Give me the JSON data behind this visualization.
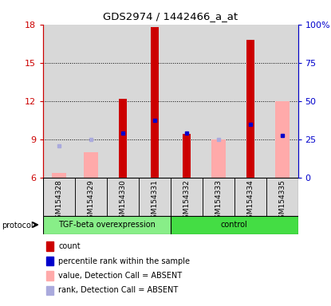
{
  "title": "GDS2974 / 1442466_a_at",
  "samples": [
    "GSM154328",
    "GSM154329",
    "GSM154330",
    "GSM154331",
    "GSM154332",
    "GSM154333",
    "GSM154334",
    "GSM154335"
  ],
  "ylim": [
    6,
    18
  ],
  "yticks": [
    6,
    9,
    12,
    15,
    18
  ],
  "ytick_labels_left": [
    "6",
    "9",
    "12",
    "15",
    "18"
  ],
  "ytick_labels_right": [
    "0",
    "25",
    "50",
    "75",
    "100%"
  ],
  "right_ylim": [
    0,
    100
  ],
  "right_yticks": [
    0,
    25,
    50,
    75,
    100
  ],
  "red_bars": {
    "GSM154328": null,
    "GSM154329": null,
    "GSM154330": 12.2,
    "GSM154331": 17.8,
    "GSM154332": 9.4,
    "GSM154333": null,
    "GSM154334": 16.8,
    "GSM154335": null
  },
  "pink_bars": {
    "GSM154328": 6.35,
    "GSM154329": 8.0,
    "GSM154330": null,
    "GSM154331": null,
    "GSM154332": null,
    "GSM154333": 9.0,
    "GSM154334": null,
    "GSM154335": 12.0
  },
  "blue_dots": {
    "GSM154328": null,
    "GSM154329": null,
    "GSM154330": 9.5,
    "GSM154331": 10.5,
    "GSM154332": 9.5,
    "GSM154333": null,
    "GSM154334": 10.2,
    "GSM154335": 9.3
  },
  "lavender_dots": {
    "GSM154328": 8.5,
    "GSM154329": 9.0,
    "GSM154330": null,
    "GSM154331": null,
    "GSM154332": null,
    "GSM154333": 9.0,
    "GSM154334": null,
    "GSM154335": null
  },
  "red_bar_width": 0.25,
  "pink_bar_width": 0.45,
  "red_color": "#cc0000",
  "pink_color": "#ffaaaa",
  "blue_color": "#0000cc",
  "lavender_color": "#aaaadd",
  "group1_color": "#88ee88",
  "group2_color": "#44dd44",
  "bg_color": "#d8d8d8",
  "plot_bg": "#ffffff",
  "base": 6.0,
  "grid_lines": [
    9,
    12,
    15
  ],
  "group1_samples": [
    0,
    1,
    2,
    3
  ],
  "group2_samples": [
    4,
    5,
    6,
    7
  ],
  "group1_label": "TGF-beta overexpression",
  "group2_label": "control",
  "legend_items": [
    {
      "color": "#cc0000",
      "label": "count"
    },
    {
      "color": "#0000cc",
      "label": "percentile rank within the sample"
    },
    {
      "color": "#ffaaaa",
      "label": "value, Detection Call = ABSENT"
    },
    {
      "color": "#aaaadd",
      "label": "rank, Detection Call = ABSENT"
    }
  ]
}
